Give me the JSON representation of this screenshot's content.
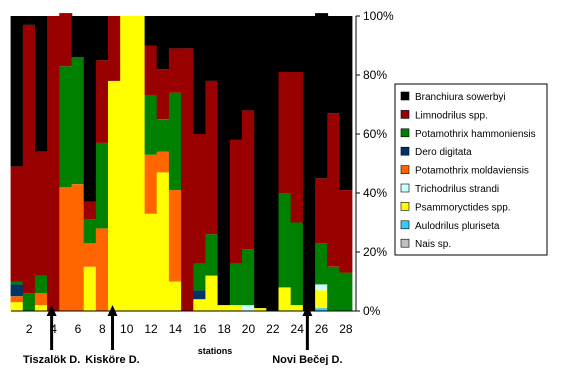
{
  "chart_data": {
    "type": "bar",
    "stacked": true,
    "xlabel": "stations",
    "ylabel": "",
    "ylim": [
      0,
      100
    ],
    "y_ticks": [
      "0%",
      "20%",
      "40%",
      "60%",
      "80%",
      "100%"
    ],
    "categories": [
      "1",
      "2",
      "3",
      "4",
      "5",
      "6",
      "7",
      "8",
      "9",
      "10",
      "11",
      "12",
      "13",
      "14",
      "15",
      "16",
      "17",
      "18",
      "19",
      "20",
      "21",
      "22",
      "23",
      "24",
      "25",
      "26",
      "27",
      "28"
    ],
    "x_tick_labels": [
      {
        "station": "2",
        "label": "2"
      },
      {
        "station": "4",
        "label": "4"
      },
      {
        "station": "6",
        "label": "6"
      },
      {
        "station": "8",
        "label": "8"
      },
      {
        "station": "10",
        "label": "10"
      },
      {
        "station": "12",
        "label": "12"
      },
      {
        "station": "14",
        "label": "14"
      },
      {
        "station": "16",
        "label": "16"
      },
      {
        "station": "18",
        "label": "18"
      },
      {
        "station": "20",
        "label": "20"
      },
      {
        "station": "22",
        "label": "22"
      },
      {
        "station": "24",
        "label": "24"
      },
      {
        "station": "26",
        "label": "26"
      },
      {
        "station": "28",
        "label": "28"
      }
    ],
    "grid": false,
    "legend_position": "right",
    "series": [
      {
        "name": "Nais sp.",
        "color": "#c0c0c0",
        "values": [
          0,
          0,
          0,
          0,
          0,
          0,
          0,
          0,
          0,
          0,
          0,
          0,
          0,
          0,
          0,
          0,
          0,
          0,
          0,
          0,
          0,
          0,
          0,
          0,
          0,
          0,
          0,
          0
        ]
      },
      {
        "name": "Aulodrilus pluriseta",
        "color": "#33ccff",
        "values": [
          0,
          0,
          0,
          0,
          0,
          0,
          0,
          0,
          0,
          0,
          0,
          0,
          0,
          0,
          0,
          0,
          0,
          0,
          0,
          0,
          0,
          0,
          0,
          0,
          0,
          1,
          0,
          0
        ]
      },
      {
        "name": "Psammoryctides spp.",
        "color": "#ffff00",
        "values": [
          3,
          0,
          2,
          0,
          0,
          0,
          15,
          0,
          78,
          100,
          100,
          33,
          47,
          10,
          0,
          4,
          12,
          2,
          2,
          0,
          1,
          0,
          8,
          2,
          0,
          6,
          0,
          0
        ]
      },
      {
        "name": "Trichodrilus strandi",
        "color": "#ccffff",
        "values": [
          0,
          0,
          0,
          0,
          0,
          0,
          0,
          0,
          0,
          0,
          0,
          0,
          0,
          0,
          0,
          0,
          0,
          0,
          0,
          2,
          0,
          0,
          0,
          0,
          0,
          2,
          0,
          0
        ]
      },
      {
        "name": "Potamothrix moldaviensis",
        "color": "#ff6600",
        "values": [
          2,
          0,
          4,
          0,
          42,
          43,
          8,
          28,
          0,
          0,
          0,
          20,
          7,
          31,
          0,
          0,
          0,
          0,
          0,
          0,
          0,
          0,
          0,
          0,
          0,
          0,
          0,
          0
        ]
      },
      {
        "name": "Dero digitata",
        "color": "#003366",
        "values": [
          4,
          0,
          0,
          0,
          0,
          0,
          0,
          0,
          0,
          0,
          0,
          0,
          0,
          0,
          0,
          3,
          0,
          0,
          0,
          0,
          0,
          0,
          0,
          0,
          0,
          0,
          0,
          0
        ]
      },
      {
        "name": "Potamothrix hammoniensis",
        "color": "#008000",
        "values": [
          1,
          6,
          6,
          0,
          41,
          43,
          8,
          29,
          0,
          0,
          0,
          20,
          11,
          33,
          0,
          9,
          14,
          0,
          14,
          19,
          0,
          0,
          32,
          28,
          0,
          14,
          15,
          13
        ]
      },
      {
        "name": "Limnodrilus spp.",
        "color": "#990000",
        "values": [
          39,
          91,
          42,
          100,
          18,
          0,
          6,
          28,
          22,
          0,
          0,
          17,
          17,
          15,
          89,
          44,
          52,
          0,
          42,
          47,
          0,
          0,
          41,
          51,
          0,
          22,
          52,
          28
        ]
      },
      {
        "name": "Branchiura sowerbyi",
        "color": "#000000",
        "values": [
          51,
          3,
          46,
          0,
          0,
          14,
          63,
          15,
          0,
          0,
          0,
          10,
          18,
          11,
          11,
          40,
          22,
          98,
          42,
          32,
          99,
          100,
          19,
          19,
          100,
          56,
          33,
          59
        ]
      }
    ],
    "legend_order": [
      "Branchiura sowerbyi",
      "Limnodrilus spp.",
      "Potamothrix hammoniensis",
      "Dero digitata",
      "Potamothrix moldaviensis",
      "Trichodrilus strandi",
      "Psammoryctides spp.",
      "Aulodrilus pluriseta",
      "Nais sp."
    ],
    "annotations": [
      {
        "text": "Tiszalök D.",
        "station": "4"
      },
      {
        "text": "Kisköre D.",
        "station": "9"
      },
      {
        "text": "Novi Bečej D.",
        "station": "25"
      }
    ]
  }
}
